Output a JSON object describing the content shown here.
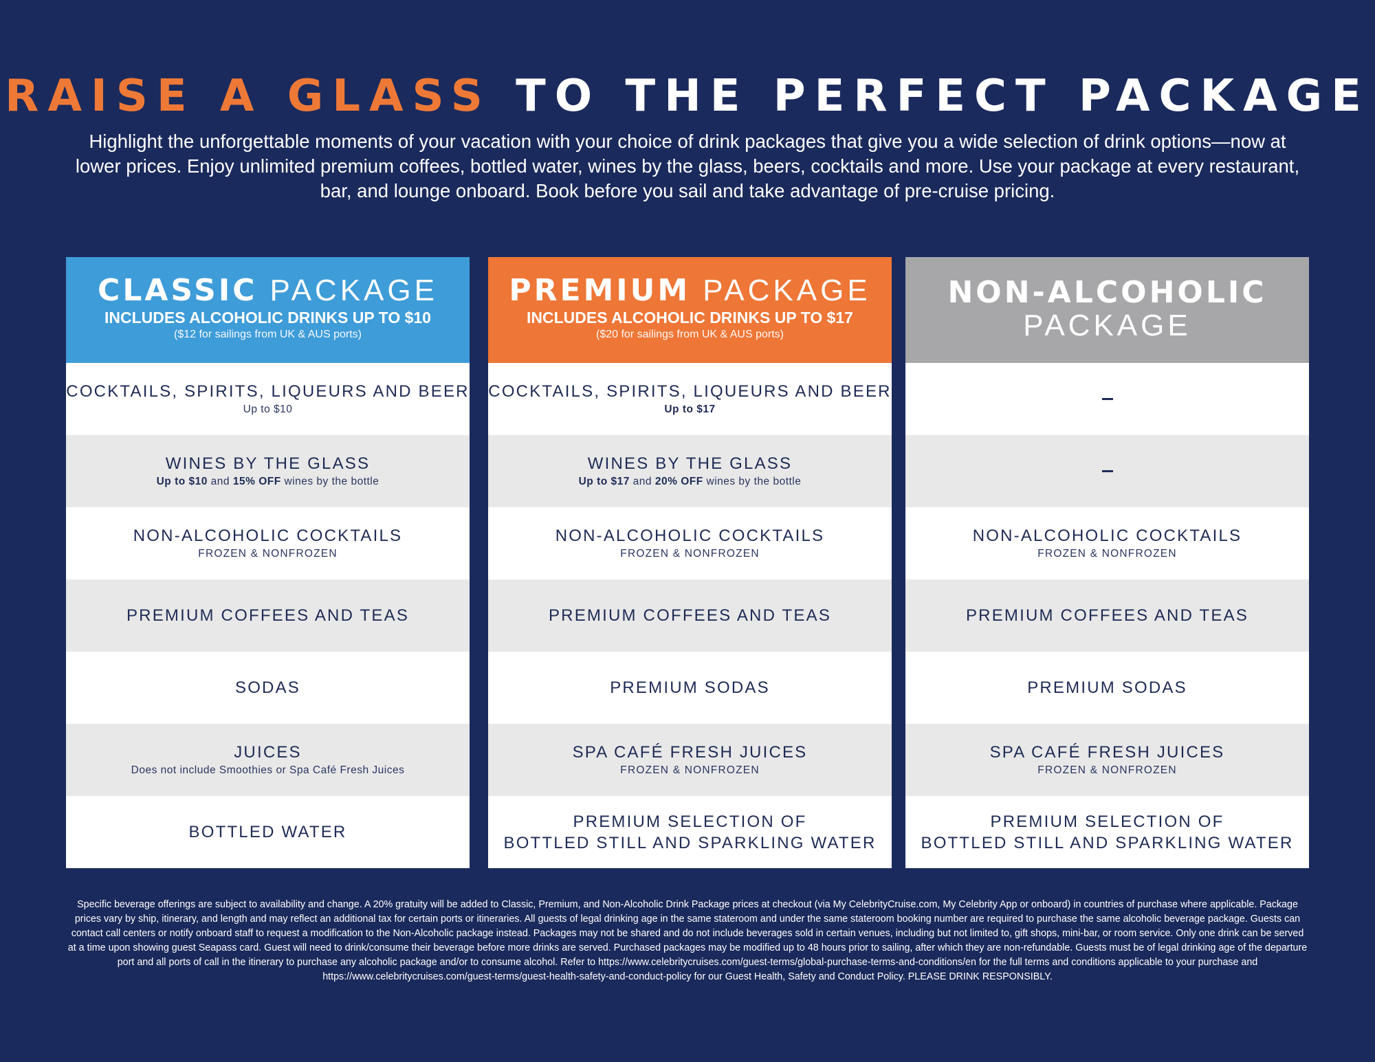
{
  "header": {
    "title_accent": "RAISE A GLASS",
    "title_rest": "TO THE PERFECT PACKAGE",
    "intro": "Highlight the unforgettable moments of your vacation with your choice of drink packages that give you a wide selection of drink options—now at lower prices. Enjoy unlimited premium coffees, bottled water, wines by the glass, beers, cocktails and more. Use your package at every restaurant, bar, and lounge onboard. Book before you sail and take advantage of pre-cruise pricing."
  },
  "colors": {
    "background": "#1b2a5c",
    "accent_orange": "#ee7937",
    "classic_header": "#3e9cd8",
    "premium_header": "#ee7636",
    "non_alcoholic_header": "#a7a7aa",
    "row_shade": "#e8e8e8",
    "text_navy": "#1f2b55"
  },
  "packages": [
    {
      "title_strong": "CLASSIC",
      "title_light": "PACKAGE",
      "includes": "INCLUDES ALCOHOLIC DRINKS UP TO $10",
      "note": "($12 for sailings from UK & AUS ports)",
      "rows": [
        {
          "main": "COCKTAILS, SPIRITS, LIQUEURS AND BEER",
          "sub": "Up to $10"
        },
        {
          "main": "WINES BY THE GLASS",
          "sub_bold1": "Up to $10",
          "sub_mid": " and ",
          "sub_bold2": "15% OFF",
          "sub_tail": " wines by the bottle"
        },
        {
          "main": "NON-ALCOHOLIC COCKTAILS",
          "sub": "FROZEN & NONFROZEN"
        },
        {
          "main": "PREMIUM COFFEES AND TEAS"
        },
        {
          "main": "SODAS"
        },
        {
          "main": "JUICES",
          "sub": "Does not include Smoothies or Spa Café Fresh Juices"
        },
        {
          "main": "BOTTLED WATER"
        }
      ]
    },
    {
      "title_strong": "PREMIUM",
      "title_light": "PACKAGE",
      "includes": "INCLUDES ALCOHOLIC DRINKS UP TO $17",
      "note": "($20 for sailings from UK & AUS ports)",
      "rows": [
        {
          "main": "COCKTAILS, SPIRITS, LIQUEURS AND BEER",
          "sub": "Up to $17"
        },
        {
          "main": "WINES BY THE GLASS",
          "sub_bold1": "Up to $17",
          "sub_mid": " and ",
          "sub_bold2": "20% OFF",
          "sub_tail": " wines by the bottle"
        },
        {
          "main": "NON-ALCOHOLIC COCKTAILS",
          "sub": "FROZEN & NONFROZEN"
        },
        {
          "main": "PREMIUM COFFEES AND TEAS"
        },
        {
          "main": "PREMIUM SODAS"
        },
        {
          "main": "SPA CAFÉ FRESH JUICES",
          "sub": "FROZEN & NONFROZEN"
        },
        {
          "main_line1": "PREMIUM SELECTION OF",
          "main_line2": "BOTTLED STILL AND SPARKLING WATER"
        }
      ]
    },
    {
      "title_strong": "NON-ALCOHOLIC",
      "title_light": "PACKAGE",
      "rows": [
        {
          "dash": "–"
        },
        {
          "dash": "–"
        },
        {
          "main": "NON-ALCOHOLIC COCKTAILS",
          "sub": "FROZEN & NONFROZEN"
        },
        {
          "main": "PREMIUM COFFEES AND TEAS"
        },
        {
          "main": "PREMIUM SODAS"
        },
        {
          "main": "SPA CAFÉ FRESH JUICES",
          "sub": "FROZEN & NONFROZEN"
        },
        {
          "main_line1": "PREMIUM SELECTION OF",
          "main_line2": "BOTTLED STILL AND SPARKLING WATER"
        }
      ]
    }
  ],
  "disclaimer": "Specific beverage offerings are subject to availability and change. A 20% gratuity will be added to Classic, Premium, and Non-Alcoholic Drink Package prices at checkout (via My CelebrityCruise.com, My Celebrity App or onboard) in countries of purchase where applicable. Package prices vary by ship, itinerary, and length and may reflect an additional tax for certain ports or itineraries. All guests of legal drinking age in the same stateroom and under the same stateroom booking number are required to purchase the same alcoholic beverage package. Guests can contact call centers or notify onboard staff to request a modification to the Non-Alcoholic package instead. Packages may not be shared and do not include beverages sold in certain venues, including but not limited to, gift shops, mini-bar, or room service. Only one drink can be served at a time upon showing guest Seapass card. Guest will need to drink/consume their beverage before more drinks are served. Purchased packages may be modified up to 48 hours prior to sailing, after which they are non-refundable. Guests must be of legal drinking age of the departure port and all ports of call in the itinerary to purchase any alcoholic package and/or to consume alcohol. Refer to https://www.celebritycruises.com/guest-terms/global-purchase-terms-and-conditions/en for the full terms and conditions applicable to your purchase and https://www.celebritycruises.com/guest-terms/guest-health-safety-and-conduct-policy for our Guest Health, Safety and Conduct Policy. PLEASE DRINK RESPONSIBLY."
}
